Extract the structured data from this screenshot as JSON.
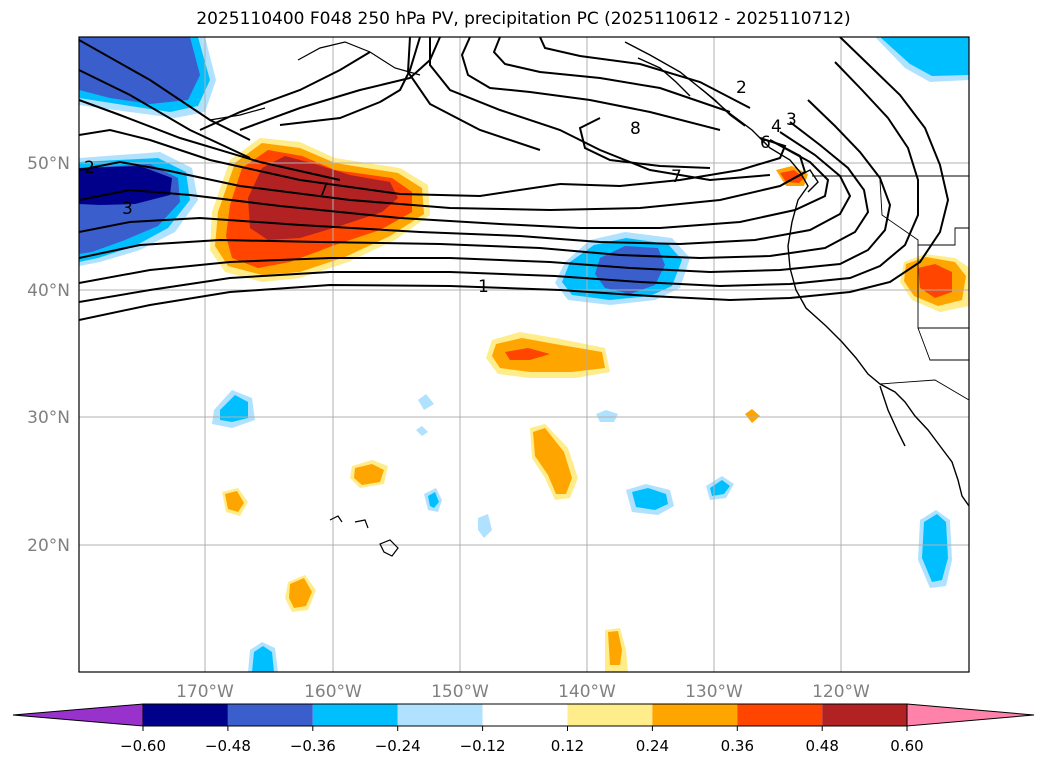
{
  "title": "2025110400 F048 250 hPa PV, precipitation PC (2025110612 - 2025110712)",
  "lat_ticks": [
    "50°N",
    "40°N",
    "30°N",
    "20°N"
  ],
  "lon_ticks": [
    "170°W",
    "160°W",
    "150°W",
    "140°W",
    "130°W",
    "120°W"
  ],
  "contour_labels": [
    "2",
    "3",
    "7",
    "1",
    "8",
    "2",
    "3",
    "4",
    "6",
    "7"
  ],
  "colorbar": {
    "ticks": [
      "−0.60",
      "−0.48",
      "−0.36",
      "−0.24",
      "−0.12",
      "0.12",
      "0.24",
      "0.36",
      "0.48",
      "0.60"
    ],
    "colors": [
      "#9932cc",
      "#00008b",
      "#3a5fcd",
      "#00bfff",
      "#b0e2ff",
      "#ffffff",
      "#ffec8b",
      "#ffa500",
      "#ff4500",
      "#b22222",
      "#ff82ab"
    ]
  },
  "extent": {
    "lon_min": -180,
    "lon_max": -110,
    "lat_min": 10,
    "lat_max": 60
  }
}
